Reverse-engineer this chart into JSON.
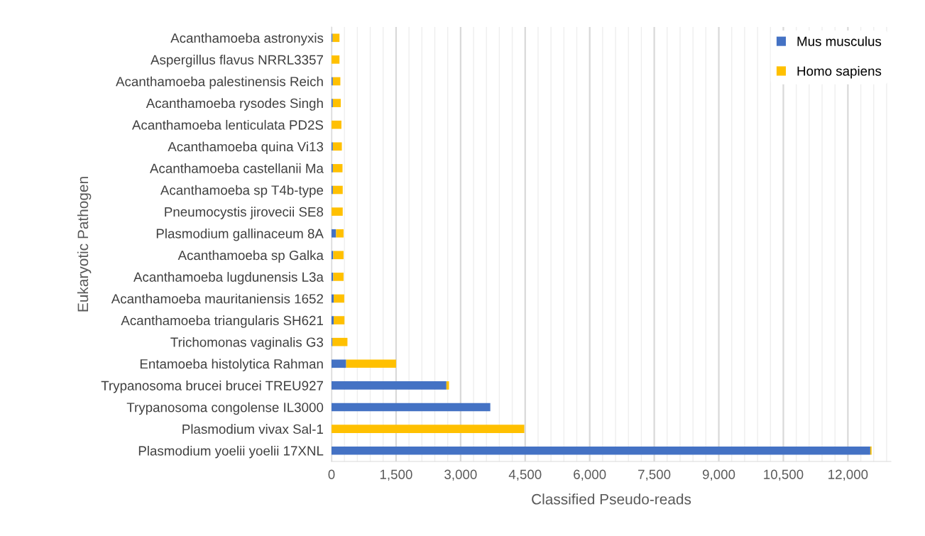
{
  "chart_data": {
    "type": "bar",
    "orientation": "horizontal",
    "stacked": true,
    "xlabel": "Classified Pseudo-reads",
    "ylabel": "Eukaryotic Pathogen",
    "categories": [
      "Acanthamoeba astronyxis",
      "Aspergillus flavus NRRL3357",
      "Acanthamoeba palestinensis Reich",
      "Acanthamoeba rysodes Singh",
      "Acanthamoeba lenticulata PD2S",
      "Acanthamoeba quina Vi13",
      "Acanthamoeba castellanii Ma",
      "Acanthamoeba sp T4b-type",
      "Pneumocystis jirovecii SE8",
      "Plasmodium gallinaceum 8A",
      "Acanthamoeba sp Galka",
      "Acanthamoeba lugdunensis L3a",
      "Acanthamoeba mauritaniensis 1652",
      "Acanthamoeba triangularis SH621",
      "Trichomonas vaginalis G3",
      "Entamoeba histolytica Rahman",
      "Trypanosoma brucei brucei TREU927",
      "Trypanosoma congolense IL3000",
      "Plasmodium vivax Sal-1",
      "Plasmodium yoelii yoelii 17XNL"
    ],
    "series": [
      {
        "name": "Mus musculus",
        "color": "#4472c4",
        "values": [
          25,
          0,
          30,
          30,
          0,
          30,
          30,
          30,
          0,
          105,
          40,
          40,
          50,
          50,
          20,
          340,
          2670,
          3690,
          0,
          12520
        ]
      },
      {
        "name": "Homo sapiens",
        "color": "#ffc000",
        "values": [
          160,
          185,
          175,
          185,
          230,
          210,
          225,
          230,
          260,
          175,
          240,
          240,
          245,
          250,
          350,
          1160,
          60,
          null,
          4480,
          30
        ]
      }
    ],
    "xlim": [
      0,
      13000
    ],
    "xticks": [
      0,
      {
        "value": 300,
        "label": null
      },
      {
        "value": 600,
        "label": null
      },
      {
        "value": 900,
        "label": null
      },
      {
        "value": 1200,
        "label": null
      },
      {
        "value": 1500,
        "label": "1,500"
      },
      {
        "value": 1800,
        "label": null
      },
      {
        "value": 2100,
        "label": null
      },
      {
        "value": 2400,
        "label": null
      },
      {
        "value": 2700,
        "label": null
      },
      {
        "value": 3000,
        "label": "3,000"
      },
      {
        "value": 3300,
        "label": null
      },
      {
        "value": 3600,
        "label": null
      },
      {
        "value": 3900,
        "label": null
      },
      {
        "value": 4200,
        "label": null
      },
      {
        "value": 4500,
        "label": "4,500"
      },
      {
        "value": 4800,
        "label": null
      },
      {
        "value": 5100,
        "label": null
      },
      {
        "value": 5400,
        "label": null
      },
      {
        "value": 5700,
        "label": null
      },
      {
        "value": 6000,
        "label": "6,000"
      },
      {
        "value": 6300,
        "label": null
      },
      {
        "value": 6600,
        "label": null
      },
      {
        "value": 6900,
        "label": null
      },
      {
        "value": 7200,
        "label": null
      },
      {
        "value": 7500,
        "label": "7,500"
      },
      {
        "value": 7800,
        "label": null
      },
      {
        "value": 8100,
        "label": null
      },
      {
        "value": 8400,
        "label": null
      },
      {
        "value": 8700,
        "label": null
      },
      {
        "value": 9000,
        "label": "9,000"
      },
      {
        "value": 9300,
        "label": null
      },
      {
        "value": 9600,
        "label": null
      },
      {
        "value": 9900,
        "label": null
      },
      {
        "value": 10200,
        "label": null
      },
      {
        "value": 10500,
        "label": "10,500"
      },
      {
        "value": 10800,
        "label": null
      },
      {
        "value": 11100,
        "label": null
      },
      {
        "value": 11400,
        "label": null
      },
      {
        "value": 11700,
        "label": null
      },
      {
        "value": 12000,
        "label": "12,000"
      },
      {
        "value": 12300,
        "label": null
      },
      {
        "value": 12600,
        "label": null
      },
      {
        "value": 12900,
        "label": null
      }
    ],
    "grid": "x",
    "legend": "top right"
  }
}
